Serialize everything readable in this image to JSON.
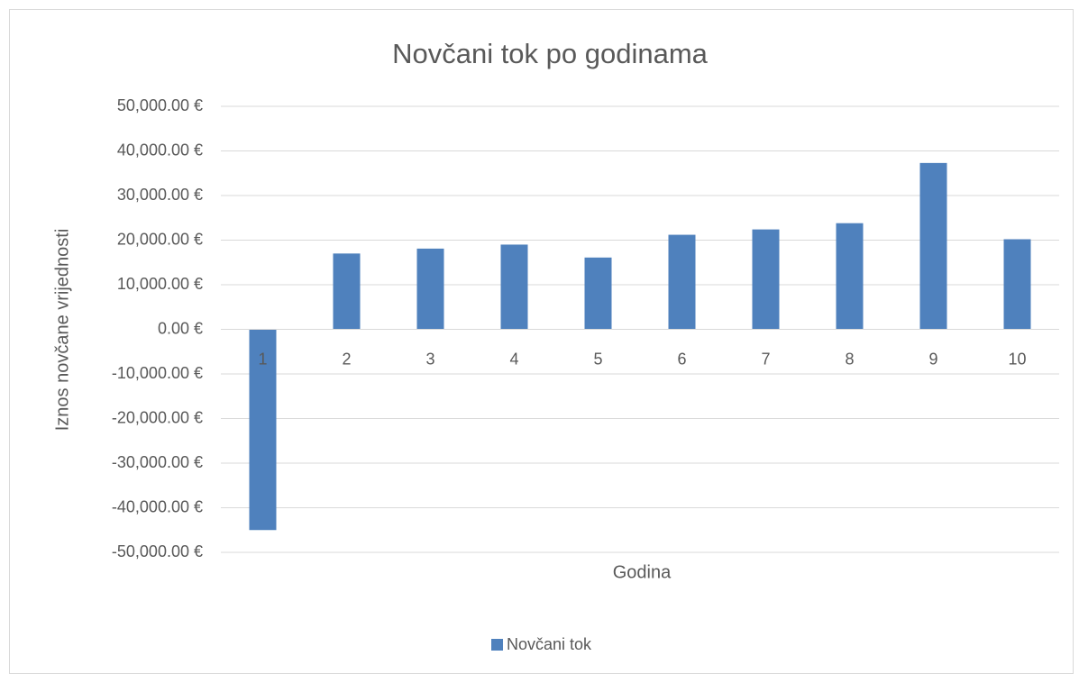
{
  "chart_data": {
    "type": "bar",
    "title": "Novčani tok po godinama",
    "x_label": "Godina",
    "y_label": "Iznos novčane vrijednosti",
    "categories": [
      "1",
      "2",
      "3",
      "4",
      "5",
      "6",
      "7",
      "8",
      "9",
      "10"
    ],
    "series": [
      {
        "name": "Novčani tok",
        "color": "#4f81bd",
        "values": [
          -45000,
          17000,
          18100,
          19000,
          16100,
          21200,
          22400,
          23800,
          37300,
          20200
        ]
      }
    ],
    "ylim": [
      -50000,
      50000
    ],
    "yticks": [
      {
        "value": -50000,
        "label": "-50,000.00 €"
      },
      {
        "value": -40000,
        "label": "-40,000.00 €"
      },
      {
        "value": -30000,
        "label": "-30,000.00 €"
      },
      {
        "value": -20000,
        "label": "-20,000.00 €"
      },
      {
        "value": -10000,
        "label": "-10,000.00 €"
      },
      {
        "value": 0,
        "label": "0.00 €"
      },
      {
        "value": 10000,
        "label": "10,000.00 €"
      },
      {
        "value": 20000,
        "label": "20,000.00 €"
      },
      {
        "value": 30000,
        "label": "30,000.00 €"
      },
      {
        "value": 40000,
        "label": "40,000.00 €"
      },
      {
        "value": 50000,
        "label": "50,000.00 €"
      }
    ],
    "grid": true,
    "legend": "bottom"
  }
}
